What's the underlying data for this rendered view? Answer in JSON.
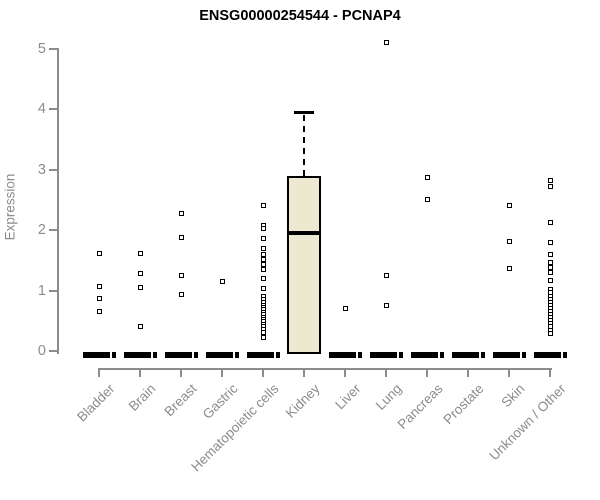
{
  "chart_data": {
    "type": "boxplot",
    "title": "ENSG00000254544 - PCNAP4",
    "xlabel": "",
    "ylabel": "Expression",
    "ylim": [
      0,
      5.2
    ],
    "yticks": [
      0,
      1,
      2,
      3,
      4,
      5
    ],
    "grid": false,
    "legend": "none",
    "point_style": "open-square-outlier",
    "categories": [
      "Bladder",
      "Brain",
      "Breast",
      "Gastric",
      "Hematopoietic cells",
      "Kidney",
      "Liver",
      "Lung",
      "Pancreas",
      "Prostate",
      "Skin",
      "Unknown / Other"
    ],
    "series": [
      {
        "category": "Bladder",
        "q1": 0,
        "median": 0,
        "q3": 0,
        "whisker_low": 0,
        "whisker_high": 0,
        "outliers": [
          1.61,
          1.07,
          0.87,
          0.65
        ]
      },
      {
        "category": "Brain",
        "q1": 0,
        "median": 0,
        "q3": 0,
        "whisker_low": 0,
        "whisker_high": 0,
        "outliers": [
          1.61,
          1.28,
          1.05,
          0.4
        ]
      },
      {
        "category": "Breast",
        "q1": 0,
        "median": 0,
        "q3": 0,
        "whisker_low": 0,
        "whisker_high": 0,
        "outliers": [
          2.27,
          1.87,
          1.24,
          0.94
        ]
      },
      {
        "category": "Gastric",
        "q1": 0,
        "median": 0,
        "q3": 0,
        "whisker_low": 0,
        "whisker_high": 0,
        "outliers": [
          1.15
        ]
      },
      {
        "category": "Hematopoietic cells",
        "q1": 0,
        "median": 0,
        "q3": 0,
        "whisker_low": 0,
        "whisker_high": 0,
        "outliers": [
          2.4,
          2.08,
          2.02,
          1.86,
          1.7,
          1.6,
          1.51,
          1.43,
          1.35,
          1.2,
          1.04,
          0.9,
          0.85,
          0.8,
          0.76,
          0.72,
          0.68,
          0.64,
          0.6,
          0.56,
          0.52,
          0.48,
          0.44,
          0.4,
          0.35,
          0.3,
          0.23
        ]
      },
      {
        "category": "Kidney",
        "q1": 0,
        "median": 1.95,
        "q3": 2.9,
        "whisker_low": 0,
        "whisker_high": 3.95,
        "outliers": []
      },
      {
        "category": "Liver",
        "q1": 0,
        "median": 0,
        "q3": 0,
        "whisker_low": 0,
        "whisker_high": 0,
        "outliers": [
          0.7
        ]
      },
      {
        "category": "Lung",
        "q1": 0,
        "median": 0,
        "q3": 0,
        "whisker_low": 0,
        "whisker_high": 0,
        "outliers": [
          5.1,
          1.24,
          0.75
        ]
      },
      {
        "category": "Pancreas",
        "q1": 0,
        "median": 0,
        "q3": 0,
        "whisker_low": 0,
        "whisker_high": 0,
        "outliers": [
          2.86,
          2.51
        ]
      },
      {
        "category": "Prostate",
        "q1": 0,
        "median": 0,
        "q3": 0,
        "whisker_low": 0,
        "whisker_high": 0,
        "outliers": []
      },
      {
        "category": "Skin",
        "q1": 0,
        "median": 0,
        "q3": 0,
        "whisker_low": 0,
        "whisker_high": 0,
        "outliers": [
          2.41,
          1.81,
          1.36
        ]
      },
      {
        "category": "Unknown / Other",
        "q1": 0,
        "median": 0,
        "q3": 0,
        "whisker_low": 0,
        "whisker_high": 0,
        "outliers": [
          2.81,
          2.72,
          2.12,
          1.8,
          1.6,
          1.46,
          1.38,
          1.3,
          1.17,
          1.02,
          0.96,
          0.9,
          0.85,
          0.8,
          0.75,
          0.7,
          0.65,
          0.6,
          0.55,
          0.5,
          0.45,
          0.4,
          0.34,
          0.29
        ]
      }
    ],
    "colors": {
      "box_fill": "#EDE8D0",
      "box_border": "#000000",
      "median": "#000000",
      "outlier": "#000000",
      "axis": "#8C8C8C",
      "tick_text": "#8C8C8C",
      "title_text": "#000000",
      "background": "#FFFFFF"
    }
  }
}
